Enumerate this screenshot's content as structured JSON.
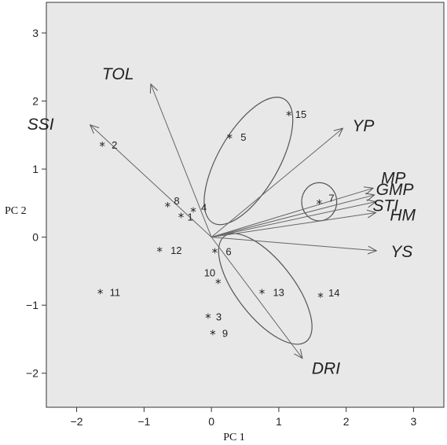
{
  "chart_data": {
    "type": "scatter",
    "subtype": "biplot",
    "title": "",
    "xlabel": "PC 1",
    "ylabel": "PC 2",
    "xlim": [
      -2.45,
      3.45
    ],
    "ylim": [
      -2.5,
      3.45
    ],
    "xticks": [
      -2,
      -1,
      0,
      1,
      2,
      3
    ],
    "yticks": [
      -2,
      -1,
      0,
      1,
      2,
      3
    ],
    "xtick_labels": [
      "−2",
      "−1",
      "0",
      "1",
      "2",
      "3"
    ],
    "ytick_labels": [
      "−2",
      "−1",
      "0",
      "1",
      "2",
      "3"
    ],
    "grid": false,
    "background_color": "#e8e8e8",
    "points": [
      {
        "label": "1",
        "x": -0.45,
        "y": 0.3
      },
      {
        "label": "2",
        "x": -1.62,
        "y": 1.35
      },
      {
        "label": "3",
        "x": -0.05,
        "y": -1.18
      },
      {
        "label": "4",
        "x": -0.27,
        "y": 0.38
      },
      {
        "label": "5",
        "x": 0.27,
        "y": 1.46
      },
      {
        "label": "6",
        "x": 0.05,
        "y": -0.22
      },
      {
        "label": "7",
        "x": 1.6,
        "y": 0.5
      },
      {
        "label": "8",
        "x": -0.65,
        "y": 0.46
      },
      {
        "label": "9",
        "x": 0.02,
        "y": -1.42
      },
      {
        "label": "10",
        "x": 0.1,
        "y": -0.67
      },
      {
        "label": "11",
        "x": -1.65,
        "y": -0.82
      },
      {
        "label": "12",
        "x": -0.77,
        "y": -0.2
      },
      {
        "label": "13",
        "x": 0.75,
        "y": -0.82
      },
      {
        "label": "14",
        "x": 1.62,
        "y": -0.87
      },
      {
        "label": "15",
        "x": 1.15,
        "y": 1.8
      }
    ],
    "vectors": [
      {
        "label": "TOL",
        "x": -0.9,
        "y": 2.25
      },
      {
        "label": "SSI",
        "x": -1.8,
        "y": 1.65
      },
      {
        "label": "YP",
        "x": 1.95,
        "y": 1.6
      },
      {
        "label": "MP",
        "x": 2.4,
        "y": 0.72
      },
      {
        "label": "GMP",
        "x": 2.42,
        "y": 0.62
      },
      {
        "label": "STI",
        "x": 2.44,
        "y": 0.52
      },
      {
        "label": "HM",
        "x": 2.44,
        "y": 0.36
      },
      {
        "label": "YS",
        "x": 2.45,
        "y": -0.2
      },
      {
        "label": "DRI",
        "x": 1.35,
        "y": -1.78
      }
    ],
    "ellipses": [
      {
        "cx": 0.55,
        "cy": 1.12,
        "rx": 0.45,
        "ry": 1.05,
        "angle_deg": 30
      },
      {
        "cx": 1.6,
        "cy": 0.52,
        "rx": 0.26,
        "ry": 0.28,
        "angle_deg": 0
      },
      {
        "cx": 0.8,
        "cy": -0.76,
        "rx": 0.42,
        "ry": 0.98,
        "angle_deg": -38
      }
    ]
  }
}
